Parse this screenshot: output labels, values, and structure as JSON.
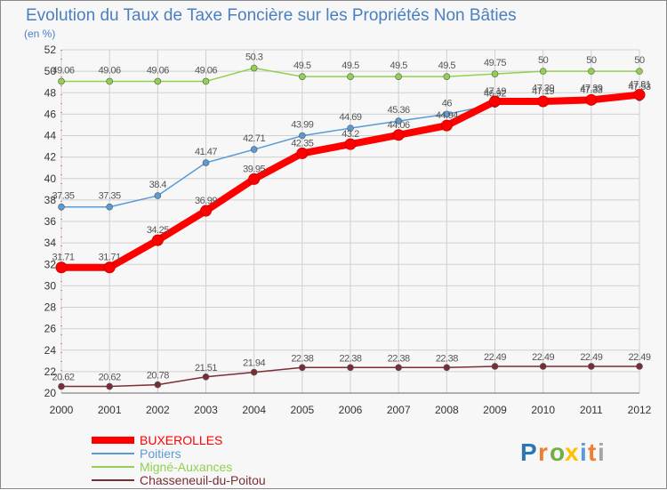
{
  "chart_data": {
    "type": "line",
    "title": "Evolution du Taux de Taxe Foncière sur les Propriétés Non Bâties",
    "ylabel": "(en %)",
    "xlabel": "",
    "x": [
      "2000",
      "2001",
      "2002",
      "2003",
      "2004",
      "2005",
      "2006",
      "2007",
      "2008",
      "2009",
      "2010",
      "2011",
      "2012"
    ],
    "ylim": [
      20,
      52
    ],
    "yticks": [
      20,
      22,
      24,
      26,
      28,
      30,
      32,
      34,
      36,
      38,
      40,
      42,
      44,
      46,
      48,
      50,
      52
    ],
    "grid": true,
    "legend": "bottom-left",
    "series": [
      {
        "name": "BUXEROLLES",
        "color": "#ff0000",
        "values": [
          31.71,
          31.71,
          34.25,
          36.99,
          39.95,
          42.35,
          43.2,
          44.06,
          44.94,
          47.19,
          47.19,
          47.33,
          47.81
        ],
        "labels": [
          "31.71",
          "31.71",
          "34.25",
          "36.99",
          "39.95",
          "42.35",
          "43.2",
          "44.06",
          "44.94",
          "47.19",
          "47.19",
          "47.33",
          "47.81"
        ]
      },
      {
        "name": "Poitiers",
        "color": "#5b9bd5",
        "values": [
          37.35,
          37.35,
          38.4,
          41.47,
          42.71,
          43.99,
          44.69,
          45.36,
          46,
          46.92,
          47.39,
          47.39,
          47.53
        ],
        "labels": [
          "37.35",
          "37.35",
          "38.4",
          "41.47",
          "42.71",
          "43.99",
          "44.69",
          "45.36",
          "46",
          "46.92",
          "47.39",
          "47.39",
          "47.53"
        ]
      },
      {
        "name": "Migné-Auxances",
        "color": "#92d050",
        "values": [
          49.06,
          49.06,
          49.06,
          49.06,
          50.3,
          49.5,
          49.5,
          49.5,
          49.5,
          49.75,
          50,
          50,
          50
        ],
        "labels": [
          "49.06",
          "49.06",
          "49.06",
          "49.06",
          "50.3",
          "49.5",
          "49.5",
          "49.5",
          "49.5",
          "49.75",
          "50",
          "50",
          "50"
        ]
      },
      {
        "name": "Chasseneuil-du-Poitou",
        "color": "#7b2d35",
        "values": [
          20.62,
          20.62,
          20.78,
          21.51,
          21.94,
          22.38,
          22.38,
          22.38,
          22.38,
          22.49,
          22.49,
          22.49,
          22.49
        ],
        "labels": [
          "20.62",
          "20.62",
          "20.78",
          "21.51",
          "21.94",
          "22.38",
          "22.38",
          "22.38",
          "22.38",
          "22.49",
          "22.49",
          "22.49",
          "22.49"
        ]
      }
    ]
  },
  "logo": {
    "letters": [
      "P",
      "r",
      "o",
      "x",
      "i",
      "t",
      "i"
    ],
    "colors": [
      "#2e75b6",
      "#ed7d31",
      "#70ad47",
      "#ffc000",
      "#5b9bd5",
      "#ed7d31",
      "#a5a5a5"
    ]
  }
}
